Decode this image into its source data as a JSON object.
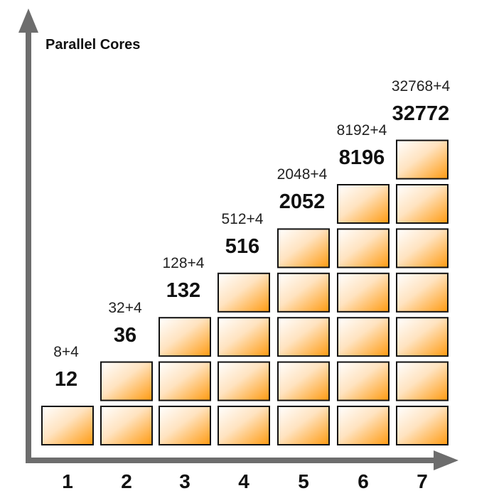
{
  "chart_data": {
    "type": "bar",
    "title": "",
    "ylabel": "Parallel Cores",
    "xlabel": "",
    "categories": [
      "1",
      "2",
      "3",
      "4",
      "5",
      "6",
      "7"
    ],
    "stack_boxes": [
      1,
      2,
      3,
      4,
      5,
      6,
      7
    ],
    "formulas": [
      "8+4",
      "32+4",
      "128+4",
      "512+4",
      "2048+4",
      "8192+4",
      "32768+4"
    ],
    "totals": [
      "12",
      "36",
      "132",
      "516",
      "2052",
      "8196",
      "32772"
    ],
    "values": [
      12,
      36,
      132,
      516,
      2052,
      8196,
      32772
    ],
    "colors": {
      "box_light": "#fff6ec",
      "box_dark": "#ff9900",
      "axis": "#6d6d6d",
      "box_border": "#111111"
    }
  }
}
